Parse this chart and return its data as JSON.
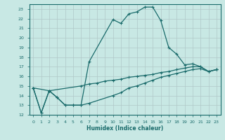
{
  "xlabel": "Humidex (Indice chaleur)",
  "xlim": [
    -0.5,
    23.5
  ],
  "ylim": [
    12,
    23.5
  ],
  "yticks": [
    12,
    13,
    14,
    15,
    16,
    17,
    18,
    19,
    20,
    21,
    22,
    23
  ],
  "xticks": [
    0,
    1,
    2,
    3,
    4,
    5,
    6,
    7,
    8,
    9,
    10,
    11,
    12,
    13,
    14,
    15,
    16,
    17,
    18,
    19,
    20,
    21,
    22,
    23
  ],
  "bg_color": "#c8e8e4",
  "line_color": "#1a6b6b",
  "grid_color": "#b0c8c8",
  "line1_x": [
    0,
    1,
    2,
    3,
    4,
    5,
    6,
    7,
    10,
    11,
    12,
    13,
    14,
    15,
    16,
    17,
    18,
    19,
    20,
    21,
    22,
    23
  ],
  "line1_y": [
    14.8,
    12.2,
    14.5,
    13.8,
    13.0,
    13.0,
    13.0,
    17.5,
    21.9,
    21.5,
    22.5,
    22.7,
    23.2,
    23.2,
    21.8,
    19.0,
    18.3,
    17.2,
    17.3,
    17.0,
    16.5,
    16.7
  ],
  "line2_x": [
    0,
    2,
    6,
    7,
    8,
    9,
    10,
    11,
    12,
    13,
    14,
    15,
    16,
    17,
    18,
    19,
    20,
    21,
    22,
    23
  ],
  "line2_y": [
    14.8,
    14.5,
    15.0,
    15.2,
    15.3,
    15.5,
    15.6,
    15.7,
    15.9,
    16.0,
    16.1,
    16.2,
    16.4,
    16.5,
    16.7,
    16.85,
    17.0,
    17.0,
    16.5,
    16.7
  ],
  "line3_x": [
    0,
    1,
    2,
    3,
    4,
    5,
    6,
    7,
    10,
    11,
    12,
    13,
    14,
    15,
    16,
    17,
    18,
    19,
    20,
    21,
    22,
    23
  ],
  "line3_y": [
    14.8,
    12.2,
    14.5,
    13.8,
    13.0,
    13.0,
    13.0,
    13.2,
    14.0,
    14.3,
    14.8,
    15.0,
    15.3,
    15.6,
    15.9,
    16.1,
    16.3,
    16.5,
    16.7,
    16.8,
    16.5,
    16.7
  ]
}
